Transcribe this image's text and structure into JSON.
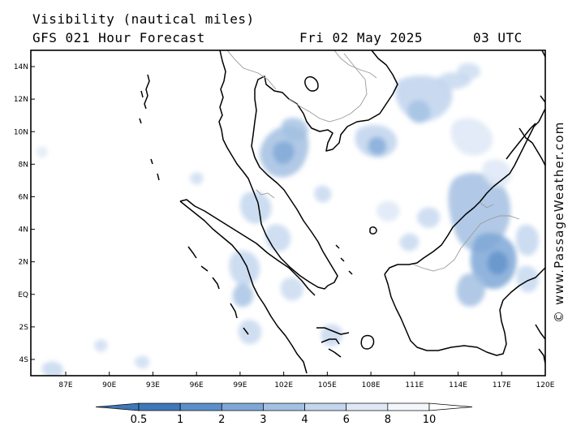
{
  "header": {
    "title": "Visibility (nautical miles)",
    "subtitle": "GFS 021 Hour Forecast",
    "date": "Fri 02 May 2025",
    "time": "03 UTC"
  },
  "credit": "© www.PassageWeather.com",
  "colors": {
    "coastline": "#000000",
    "border": "#9a9a9a",
    "band_0_5_1": "#3f78b8",
    "band_1_2": "#5b8fc9",
    "band_2_3": "#7ea7d6",
    "band_3_4": "#a3c0e2",
    "band_4_6": "#c3d6ee",
    "band_6_8": "#dfe9f6",
    "band_8_10": "#f3f7fc"
  },
  "map": {
    "lon_range": [
      84.6,
      120
    ],
    "lat_range": [
      -5,
      15
    ],
    "lon_ticks": [
      {
        "lon": 87,
        "label": "87E"
      },
      {
        "lon": 90,
        "label": "90E"
      },
      {
        "lon": 93,
        "label": "93E"
      },
      {
        "lon": 96,
        "label": "96E"
      },
      {
        "lon": 99,
        "label": "99E"
      },
      {
        "lon": 102,
        "label": "102E"
      },
      {
        "lon": 105,
        "label": "105E"
      },
      {
        "lon": 108,
        "label": "108E"
      },
      {
        "lon": 111,
        "label": "111E"
      },
      {
        "lon": 114,
        "label": "114E"
      },
      {
        "lon": 117,
        "label": "117E"
      },
      {
        "lon": 120,
        "label": "120E"
      }
    ],
    "lat_ticks": [
      {
        "lat": 14,
        "label": "14N"
      },
      {
        "lat": 12,
        "label": "12N"
      },
      {
        "lat": 10,
        "label": "10N"
      },
      {
        "lat": 8,
        "label": "8N"
      },
      {
        "lat": 6,
        "label": "6N"
      },
      {
        "lat": 4,
        "label": "4N"
      },
      {
        "lat": 2,
        "label": "2N"
      },
      {
        "lat": 0,
        "label": "EQ"
      },
      {
        "lat": -2,
        "label": "2S"
      },
      {
        "lat": -4,
        "label": "4S"
      }
    ]
  },
  "colorbar": {
    "labels": [
      "0.5",
      "1",
      "2",
      "3",
      "4",
      "6",
      "8",
      "10"
    ],
    "colors": [
      "#3f78b8",
      "#5b8fc9",
      "#7ea7d6",
      "#a3c0e2",
      "#c3d6ee",
      "#dfe9f6",
      "#f3f7fc"
    ]
  }
}
